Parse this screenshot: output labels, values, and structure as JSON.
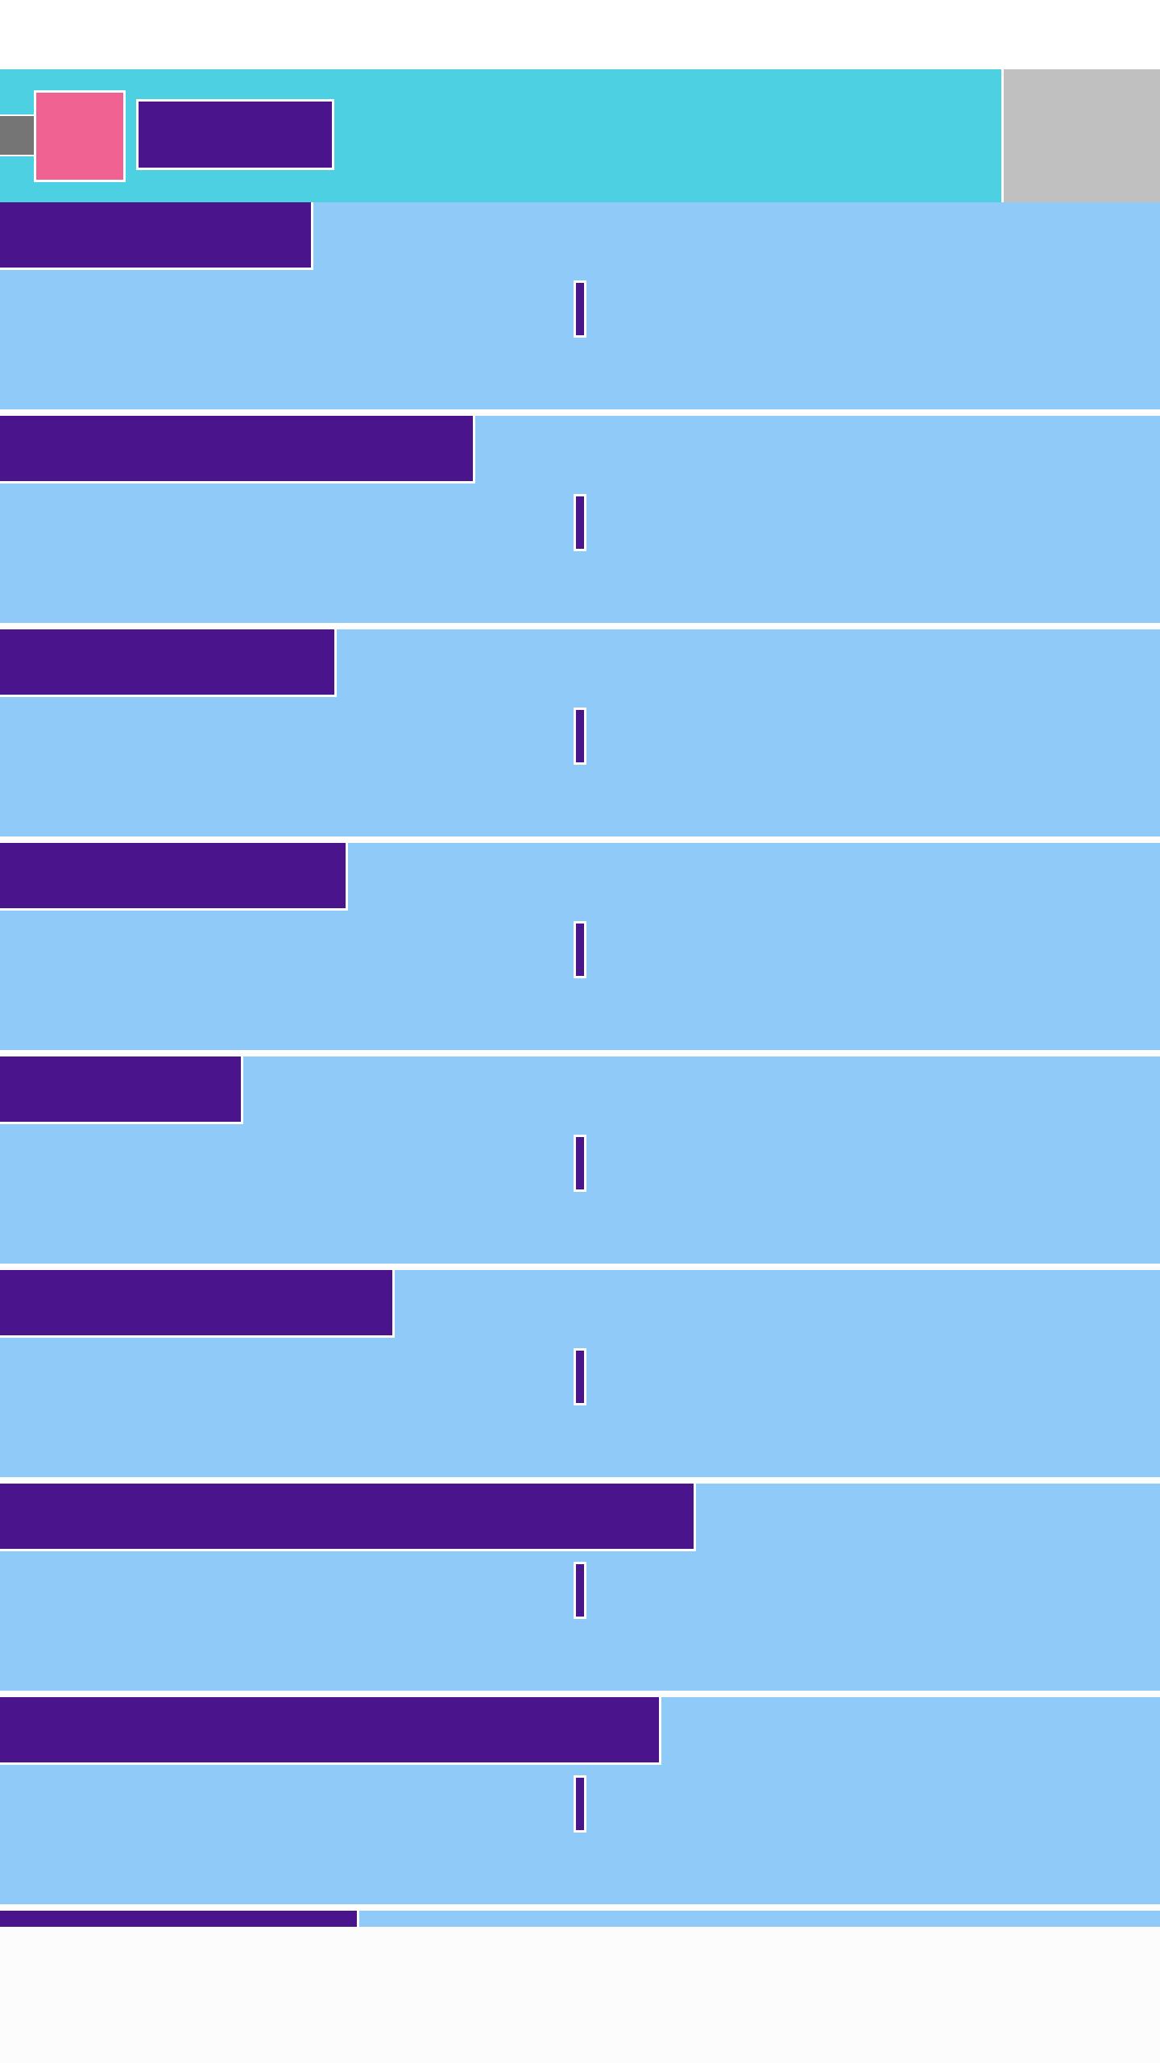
{
  "app": {
    "title": "",
    "colors": {
      "app_bar": "#4dd0e1",
      "logo": "#f06292",
      "accent": "#4a148c",
      "card_background": "#90caf9",
      "side_panel": "#c0c0c0",
      "nav_stub": "#757575"
    }
  },
  "cards": [
    {
      "title": "",
      "title_fill": 0.27
    },
    {
      "title": "",
      "title_fill": 0.41
    },
    {
      "title": "",
      "title_fill": 0.29
    },
    {
      "title": "",
      "title_fill": 0.3
    },
    {
      "title": "",
      "title_fill": 0.21
    },
    {
      "title": "",
      "title_fill": 0.34
    },
    {
      "title": "",
      "title_fill": 0.6
    },
    {
      "title": "",
      "title_fill": 0.57
    },
    {
      "title": "",
      "title_fill": 0.31
    }
  ]
}
